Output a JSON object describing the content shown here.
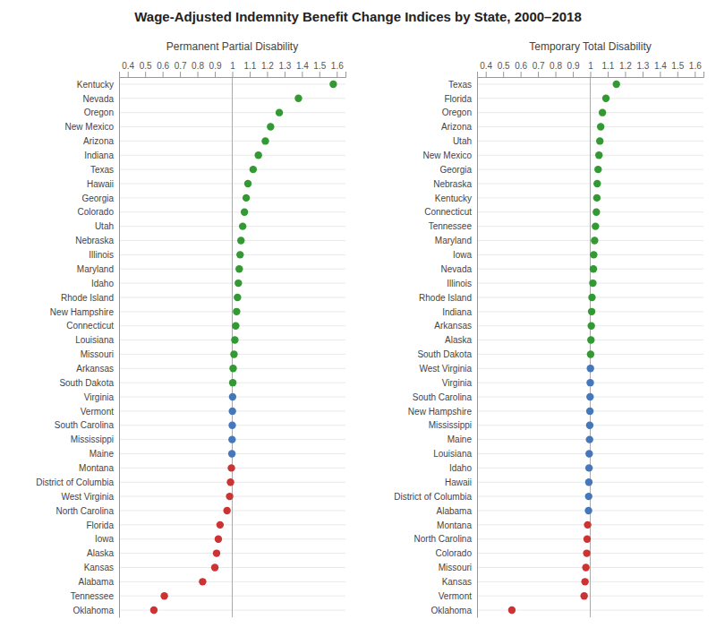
{
  "title": "Wage-Adjusted Indemnity Benefit Change Indices by State, 2000–2018",
  "chart_data": [
    {
      "type": "dot",
      "orientation": "horizontal",
      "subtitle": "Permanent Partial Disability",
      "categories": [
        "Kentucky",
        "Nevada",
        "Oregon",
        "New Mexico",
        "Arizona",
        "Indiana",
        "Texas",
        "Hawaii",
        "Georgia",
        "Colorado",
        "Utah",
        "Nebraska",
        "Illinois",
        "Maryland",
        "Idaho",
        "Rhode Island",
        "New Hampshire",
        "Connecticut",
        "Louisiana",
        "Missouri",
        "Arkansas",
        "South Dakota",
        "Virginia",
        "Vermont",
        "South Carolina",
        "Mississippi",
        "Maine",
        "Montana",
        "District of Columbia",
        "West Virginia",
        "North Carolina",
        "Florida",
        "Iowa",
        "Alaska",
        "Kansas",
        "Alabama",
        "Tennessee",
        "Oklahoma"
      ],
      "values": [
        1.58,
        1.38,
        1.27,
        1.22,
        1.19,
        1.15,
        1.12,
        1.09,
        1.08,
        1.07,
        1.06,
        1.05,
        1.045,
        1.04,
        1.035,
        1.03,
        1.025,
        1.02,
        1.015,
        1.01,
        1.005,
        1.003,
        1.002,
        1.001,
        1.0,
        0.999,
        0.998,
        0.995,
        0.99,
        0.985,
        0.97,
        0.93,
        0.92,
        0.91,
        0.9,
        0.83,
        0.61,
        0.55
      ],
      "colors": [
        "#339933",
        "#339933",
        "#339933",
        "#339933",
        "#339933",
        "#339933",
        "#339933",
        "#339933",
        "#339933",
        "#339933",
        "#339933",
        "#339933",
        "#339933",
        "#339933",
        "#339933",
        "#339933",
        "#339933",
        "#339933",
        "#339933",
        "#339933",
        "#339933",
        "#339933",
        "#4477bb",
        "#4477bb",
        "#4477bb",
        "#4477bb",
        "#4477bb",
        "#cc3333",
        "#cc3333",
        "#cc3333",
        "#cc3333",
        "#cc3333",
        "#cc3333",
        "#cc3333",
        "#cc3333",
        "#cc3333",
        "#cc3333",
        "#cc3333"
      ],
      "xlim": [
        0.35,
        1.65
      ],
      "xticks": [
        0.4,
        0.5,
        0.6,
        0.7,
        0.8,
        0.9,
        1,
        1.1,
        1.2,
        1.3,
        1.4,
        1.5,
        1.6
      ],
      "reference_line": 1,
      "grid": true
    },
    {
      "type": "dot",
      "orientation": "horizontal",
      "subtitle": "Temporary Total Disability",
      "categories": [
        "Texas",
        "Florida",
        "Oregon",
        "Arizona",
        "Utah",
        "New Mexico",
        "Georgia",
        "Nebraska",
        "Kentucky",
        "Connecticut",
        "Tennessee",
        "Maryland",
        "Iowa",
        "Nevada",
        "Illinois",
        "Rhode Island",
        "Indiana",
        "Arkansas",
        "Alaska",
        "South Dakota",
        "West Virginia",
        "Virginia",
        "South Carolina",
        "New Hampshire",
        "Mississippi",
        "Maine",
        "Louisiana",
        "Idaho",
        "Hawaii",
        "District of Columbia",
        "Alabama",
        "Montana",
        "North Carolina",
        "Colorado",
        "Missouri",
        "Kansas",
        "Vermont",
        "Oklahoma"
      ],
      "values": [
        1.15,
        1.09,
        1.07,
        1.06,
        1.055,
        1.05,
        1.045,
        1.04,
        1.038,
        1.035,
        1.03,
        1.025,
        1.02,
        1.018,
        1.015,
        1.01,
        1.008,
        1.006,
        1.004,
        1.002,
        1.001,
        1.0,
        0.999,
        0.998,
        0.997,
        0.996,
        0.994,
        0.993,
        0.992,
        0.991,
        0.99,
        0.985,
        0.982,
        0.98,
        0.975,
        0.97,
        0.965,
        0.55
      ],
      "colors": [
        "#339933",
        "#339933",
        "#339933",
        "#339933",
        "#339933",
        "#339933",
        "#339933",
        "#339933",
        "#339933",
        "#339933",
        "#339933",
        "#339933",
        "#339933",
        "#339933",
        "#339933",
        "#339933",
        "#339933",
        "#339933",
        "#339933",
        "#339933",
        "#4477bb",
        "#4477bb",
        "#4477bb",
        "#4477bb",
        "#4477bb",
        "#4477bb",
        "#4477bb",
        "#4477bb",
        "#4477bb",
        "#4477bb",
        "#4477bb",
        "#cc3333",
        "#cc3333",
        "#cc3333",
        "#cc3333",
        "#cc3333",
        "#cc3333",
        "#cc3333"
      ],
      "xlim": [
        0.35,
        1.65
      ],
      "xticks": [
        0.4,
        0.5,
        0.6,
        0.7,
        0.8,
        0.9,
        1,
        1.1,
        1.2,
        1.3,
        1.4,
        1.5,
        1.6
      ],
      "reference_line": 1,
      "grid": true
    }
  ]
}
